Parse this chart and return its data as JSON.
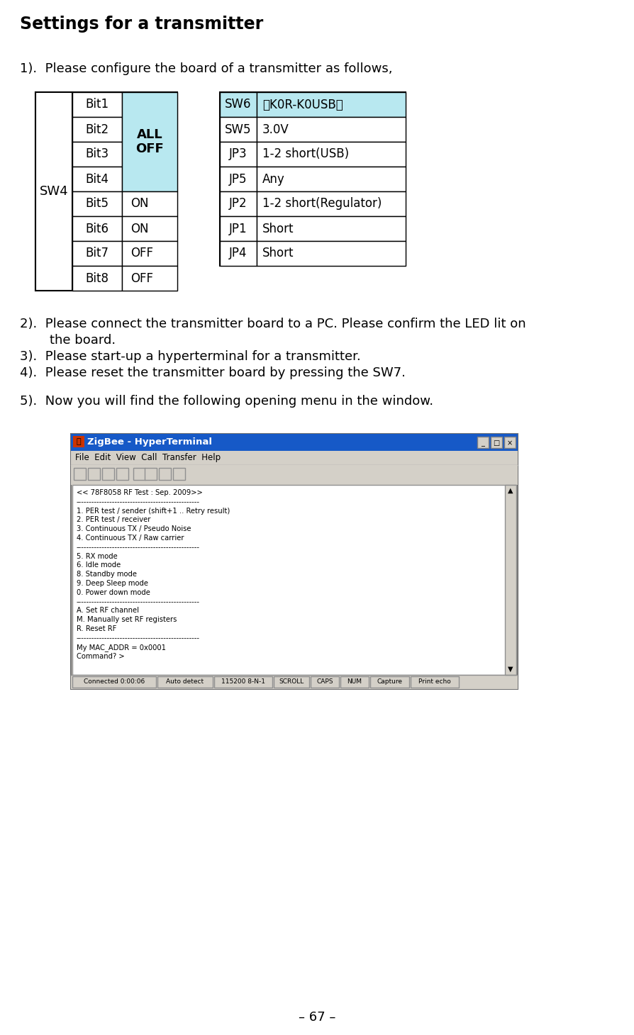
{
  "title": "Settings for a transmitter",
  "page_number": "– 67 –",
  "background_color": "#ffffff",
  "text_color": "#000000",
  "step1_text": "1).  Please configure the board of a transmitter as follows,",
  "sw4_label": "SW4",
  "sw4_bits": [
    "Bit1",
    "Bit2",
    "Bit3",
    "Bit4",
    "Bit5",
    "Bit6",
    "Bit7",
    "Bit8"
  ],
  "sw4_values": [
    "",
    "",
    "",
    "",
    "ON",
    "ON",
    "OFF",
    "OFF"
  ],
  "sw4_merged_label": "ALL\nOFF",
  "sw4_merged_bg": "#b8e8f0",
  "right_table_col1": [
    "SW6",
    "SW5",
    "JP3",
    "JP5",
    "JP2",
    "JP1",
    "JP4"
  ],
  "right_table_col2": [
    "『K0R-K0USB』",
    "3.0V",
    "1-2 short(USB)",
    "Any",
    "1-2 short(Regulator)",
    "Short",
    "Short"
  ],
  "right_table_sw6_bg": "#b8e8f0",
  "terminal_title": "ZigBee - HyperTerminal",
  "terminal_content": "<< 78F8058 RF Test : Sep. 2009>>\n------------------------------------------------\n1. PER test / sender (shift+1 .. Retry result)\n2. PER test / receiver\n3. Continuous TX / Pseudo Noise\n4. Continuous TX / Raw carrier\n------------------------------------------------\n5. RX mode\n6. Idle mode\n8. Standby mode\n9. Deep Sleep mode\n0. Power down mode\n------------------------------------------------\nA. Set RF channel\nM. Manually set RF registers\nR. Reset RF\n------------------------------------------------\nMy MAC_ADDR = 0x0001\nCommand? >",
  "terminal_menu": "File  Edit  View  Call  Transfer  Help",
  "status_items": [
    "Connected 0:00:06",
    "Auto detect",
    "115200 8-N-1",
    "SCROLL",
    "CAPS",
    "NUM",
    "Capture",
    "Print echo"
  ],
  "status_widths": [
    118,
    78,
    82,
    50,
    40,
    40,
    55,
    68
  ]
}
